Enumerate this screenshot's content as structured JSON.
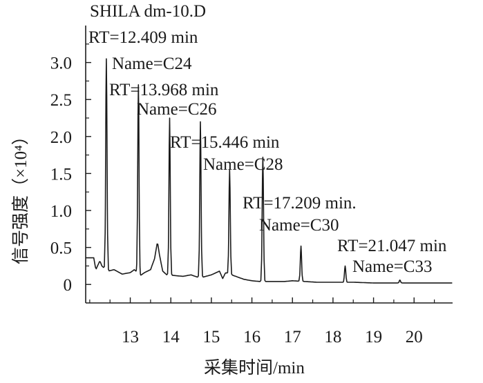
{
  "chart_data": {
    "type": "line",
    "title": "SHILA dm-10.D",
    "xlabel": "采集时间/min",
    "ylabel": "信号强度（×10⁴）",
    "xlim": [
      11.9,
      20.95
    ],
    "ylim": [
      -0.25,
      3.5
    ],
    "x_ticks": [
      13,
      14,
      15,
      16,
      17,
      18,
      19,
      20
    ],
    "y_ticks": [
      {
        "value": 0,
        "label": "0"
      },
      {
        "value": 0.5,
        "label": "0.5"
      },
      {
        "value": 1.0,
        "label": "1.0"
      },
      {
        "value": 1.5,
        "label": "1.5"
      },
      {
        "value": 2.0,
        "label": "2.0"
      },
      {
        "value": 2.5,
        "label": "2.5"
      },
      {
        "value": 3.0,
        "label": "3.0"
      }
    ],
    "baseline": [
      [
        11.9,
        0.36
      ],
      [
        12.0,
        0.36
      ],
      [
        12.1,
        0.36
      ],
      [
        12.15,
        0.2
      ],
      [
        12.25,
        0.32
      ],
      [
        12.3,
        0.25
      ],
      [
        12.36,
        0.22
      ],
      [
        12.45,
        0.18
      ],
      [
        12.6,
        0.2
      ],
      [
        12.8,
        0.14
      ],
      [
        13.0,
        0.16
      ],
      [
        13.1,
        0.2
      ],
      [
        13.25,
        0.12
      ],
      [
        13.35,
        0.16
      ],
      [
        13.5,
        0.2
      ],
      [
        13.6,
        0.35
      ],
      [
        13.67,
        0.58
      ],
      [
        13.72,
        0.4
      ],
      [
        13.8,
        0.18
      ],
      [
        13.9,
        0.13
      ],
      [
        14.1,
        0.12
      ],
      [
        14.3,
        0.11
      ],
      [
        14.5,
        0.13
      ],
      [
        14.65,
        0.1
      ],
      [
        14.8,
        0.1
      ],
      [
        15.0,
        0.13
      ],
      [
        15.2,
        0.18
      ],
      [
        15.28,
        0.08
      ],
      [
        15.35,
        0.16
      ],
      [
        15.55,
        0.12
      ],
      [
        15.8,
        0.07
      ],
      [
        16.0,
        0.05
      ],
      [
        16.2,
        0.04
      ],
      [
        16.5,
        0.04
      ],
      [
        16.8,
        0.04
      ],
      [
        17.0,
        0.05
      ],
      [
        17.3,
        0.04
      ],
      [
        17.6,
        0.03
      ],
      [
        18.0,
        0.03
      ],
      [
        18.5,
        0.03
      ],
      [
        19.0,
        0.02
      ],
      [
        19.5,
        0.02
      ],
      [
        20.0,
        0.02
      ],
      [
        20.95,
        0.02
      ]
    ],
    "peaks": [
      {
        "x": 12.41,
        "y": 3.05
      },
      {
        "x": 13.2,
        "y": 2.7
      },
      {
        "x": 13.97,
        "y": 2.25
      },
      {
        "x": 14.73,
        "y": 2.2
      },
      {
        "x": 15.45,
        "y": 1.55
      },
      {
        "x": 16.27,
        "y": 1.72
      },
      {
        "x": 17.21,
        "y": 0.52
      },
      {
        "x": 18.3,
        "y": 0.25
      },
      {
        "x": 19.65,
        "y": 0.06
      }
    ],
    "annotations": [
      "RT=12.409 min",
      "Name=C24",
      "RT=13.968 min",
      "Name=C26",
      "RT=15.446 min",
      "Name=C28",
      "RT=17.209 min.",
      "Name=C30",
      "RT=21.047 min",
      "Name=C33"
    ]
  }
}
